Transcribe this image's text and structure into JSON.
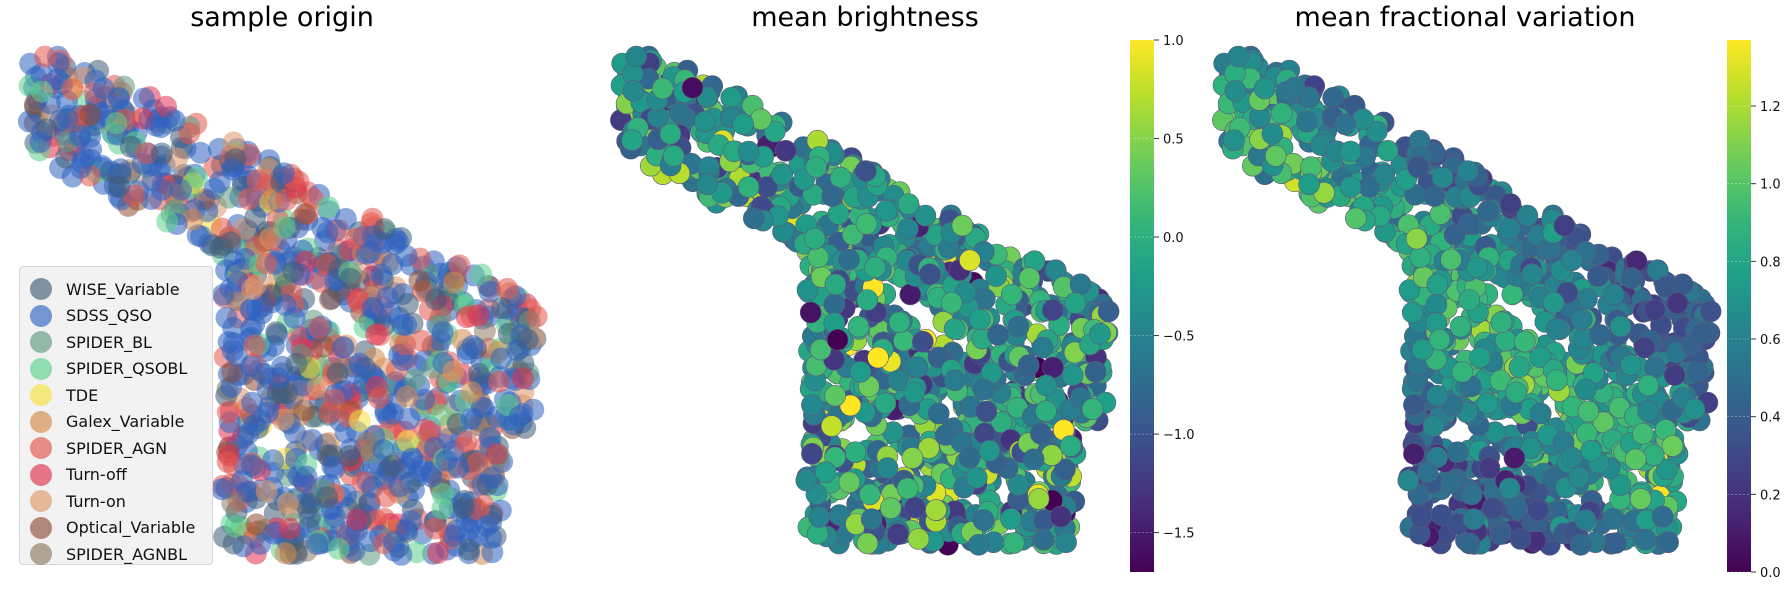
{
  "chart_data": [
    {
      "type": "scatter",
      "title": "sample origin",
      "axes": "off",
      "legend_position": "lower-left",
      "categories": [
        {
          "name": "WISE_Variable",
          "color": "#3f5d78"
        },
        {
          "name": "SDSS_QSO",
          "color": "#2f62c0"
        },
        {
          "name": "SPIDER_BL",
          "color": "#5e9a80"
        },
        {
          "name": "SPIDER_QSOBL",
          "color": "#5ccf8c"
        },
        {
          "name": "TDE",
          "color": "#f5e03a"
        },
        {
          "name": "Galex_Variable",
          "color": "#d38a4a"
        },
        {
          "name": "SPIDER_AGN",
          "color": "#e2554f"
        },
        {
          "name": "Turn-off",
          "color": "#e0314e"
        },
        {
          "name": "Turn-on",
          "color": "#dc9868"
        },
        {
          "name": "Optical_Variable",
          "color": "#8e4f35"
        },
        {
          "name": "SPIDER_AGNBL",
          "color": "#8c7a62"
        }
      ],
      "background_category": "SDSS_QSO"
    },
    {
      "type": "scatter",
      "title": "mean brightness",
      "axes": "off",
      "colormap": "viridis",
      "colorbar": {
        "range": [
          -1.7,
          1.0
        ],
        "ticks": [
          1.0,
          0.5,
          0.0,
          -0.5,
          -1.0,
          -1.5
        ],
        "tick_labels": [
          "1.0",
          "0.5",
          "0.0",
          "−0.5",
          "−1.0",
          "−1.5"
        ]
      },
      "value_distribution": {
        "typical": -0.3,
        "spread": 0.55
      }
    },
    {
      "type": "scatter",
      "title": "mean fractional variation",
      "axes": "off",
      "colormap": "viridis",
      "colorbar": {
        "range": [
          0.0,
          1.37
        ],
        "ticks": [
          0.0,
          0.2,
          0.4,
          0.6,
          0.8,
          1.0,
          1.2
        ],
        "tick_labels": [
          "0.0",
          "0.2",
          "0.4",
          "0.6",
          "0.8",
          "1.0",
          "1.2"
        ]
      },
      "value_distribution": {
        "typical": 0.55,
        "spread": 0.25,
        "high_region": "inner arc"
      }
    }
  ]
}
